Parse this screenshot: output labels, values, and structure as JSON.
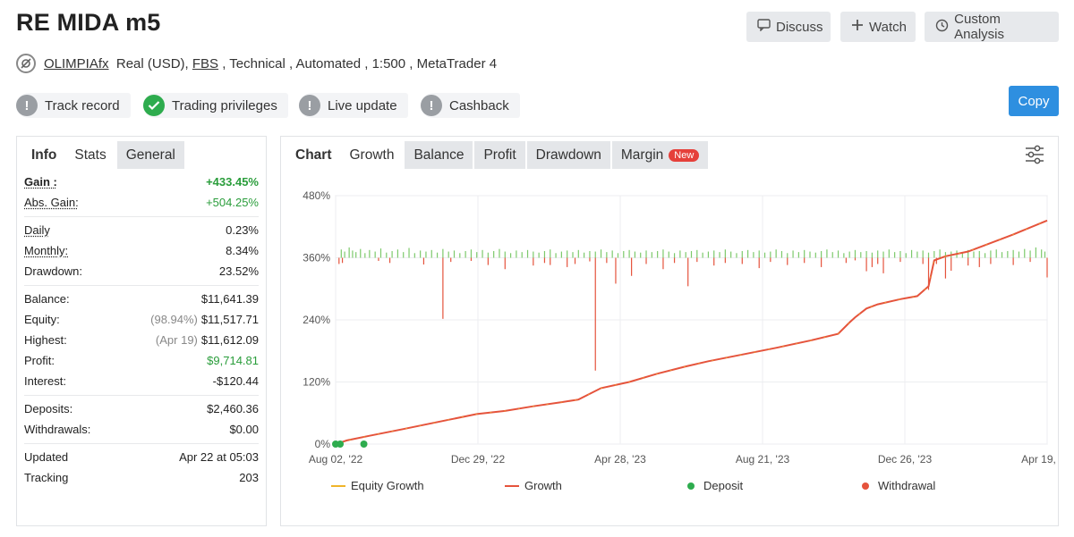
{
  "title": "RE MIDA m5",
  "actions": {
    "discuss": "Discuss",
    "watch": "Watch",
    "custom": "Custom Analysis",
    "copy": "Copy"
  },
  "meta": {
    "owner": "OLIMPIAfx",
    "account": "Real (USD), ",
    "broker": "FBS",
    "rest": " , Technical , Automated , 1:500 , MetaTrader 4"
  },
  "badges": {
    "track": "Track record",
    "trading": "Trading privileges",
    "live": "Live update",
    "cashback": "Cashback"
  },
  "left_tabs": {
    "info": "Info",
    "stats": "Stats",
    "general": "General"
  },
  "stats": {
    "gain_label": "Gain :",
    "gain": "+433.45%",
    "abs_gain_label": "Abs. Gain:",
    "abs_gain": "+504.25%",
    "daily_label": "Daily",
    "daily": "0.23%",
    "monthly_label": "Monthly:",
    "monthly": "8.34%",
    "drawdown_label": "Drawdown:",
    "drawdown": "23.52%",
    "balance_label": "Balance:",
    "balance": "$11,641.39",
    "equity_label": "Equity:",
    "equity_pct": "(98.94%)",
    "equity": "$11,517.71",
    "highest_label": "Highest:",
    "highest_date": "(Apr 19)",
    "highest": "$11,612.09",
    "profit_label": "Profit:",
    "profit": "$9,714.81",
    "interest_label": "Interest:",
    "interest": "-$120.44",
    "deposits_label": "Deposits:",
    "deposits": "$2,460.36",
    "withdrawals_label": "Withdrawals:",
    "withdrawals": "$0.00",
    "updated_label": "Updated",
    "updated": "Apr 22 at 05:03",
    "tracking_label": "Tracking",
    "tracking": "203"
  },
  "chart_tabs": {
    "chart": "Chart",
    "growth": "Growth",
    "balance": "Balance",
    "profit": "Profit",
    "drawdown": "Drawdown",
    "margin": "Margin",
    "new_badge": "New"
  },
  "colors": {
    "growth": "#e5533c",
    "equity": "#f0b429",
    "deposit": "#2eac4e",
    "withdrawal": "#e5533c",
    "bar_pos": "#7cc96b",
    "bar_neg": "#e5533c"
  },
  "chart_data": {
    "type": "line",
    "yticks": [
      "0%",
      "120%",
      "240%",
      "360%",
      "480%"
    ],
    "ylim": [
      0,
      480
    ],
    "xticks": [
      "Aug 02, '22",
      "Dec 29, '22",
      "Apr 28, '23",
      "Aug 21, '23",
      "Dec 26, '23",
      "Apr 19, '24"
    ],
    "xlim": [
      0,
      630
    ],
    "legend": [
      "Equity Growth",
      "Growth",
      "Deposit",
      "Withdrawal"
    ],
    "legend_position": "bottom",
    "series": [
      {
        "name": "Growth",
        "points": [
          [
            0,
            0
          ],
          [
            10,
            7
          ],
          [
            30,
            16
          ],
          [
            60,
            29
          ],
          [
            100,
            47
          ],
          [
            125,
            58
          ],
          [
            150,
            64
          ],
          [
            175,
            73
          ],
          [
            200,
            81
          ],
          [
            215,
            86
          ],
          [
            235,
            108
          ],
          [
            260,
            120
          ],
          [
            285,
            136
          ],
          [
            310,
            150
          ],
          [
            330,
            160
          ],
          [
            360,
            173
          ],
          [
            390,
            186
          ],
          [
            420,
            200
          ],
          [
            445,
            213
          ],
          [
            455,
            235
          ],
          [
            460,
            245
          ],
          [
            470,
            262
          ],
          [
            480,
            270
          ],
          [
            500,
            280
          ],
          [
            515,
            286
          ],
          [
            525,
            305
          ],
          [
            530,
            355
          ],
          [
            540,
            363
          ],
          [
            560,
            372
          ],
          [
            600,
            405
          ],
          [
            630,
            432
          ]
        ]
      }
    ],
    "deposits": [
      [
        0,
        0
      ],
      [
        4,
        0
      ],
      [
        25,
        0
      ]
    ],
    "bars": {
      "pos": [
        [
          5,
          16
        ],
        [
          8,
          12
        ],
        [
          12,
          20
        ],
        [
          15,
          14
        ],
        [
          18,
          11
        ],
        [
          22,
          17
        ],
        [
          26,
          9
        ],
        [
          30,
          15
        ],
        [
          35,
          12
        ],
        [
          40,
          18
        ],
        [
          45,
          10
        ],
        [
          50,
          13
        ],
        [
          55,
          16
        ],
        [
          60,
          11
        ],
        [
          65,
          19
        ],
        [
          70,
          9
        ],
        [
          75,
          14
        ],
        [
          80,
          12
        ],
        [
          85,
          15
        ],
        [
          90,
          10
        ],
        [
          95,
          17
        ],
        [
          100,
          12
        ],
        [
          105,
          14
        ],
        [
          110,
          9
        ],
        [
          115,
          13
        ],
        [
          120,
          16
        ],
        [
          125,
          11
        ],
        [
          130,
          15
        ],
        [
          135,
          10
        ],
        [
          140,
          13
        ],
        [
          145,
          17
        ],
        [
          150,
          12
        ],
        [
          155,
          9
        ],
        [
          160,
          14
        ],
        [
          165,
          11
        ],
        [
          170,
          15
        ],
        [
          175,
          12
        ],
        [
          180,
          10
        ],
        [
          185,
          13
        ],
        [
          190,
          16
        ],
        [
          195,
          9
        ],
        [
          200,
          12
        ],
        [
          205,
          14
        ],
        [
          210,
          11
        ],
        [
          215,
          15
        ],
        [
          220,
          10
        ],
        [
          225,
          13
        ],
        [
          230,
          12
        ],
        [
          235,
          16
        ],
        [
          240,
          11
        ],
        [
          245,
          14
        ],
        [
          250,
          9
        ],
        [
          255,
          13
        ],
        [
          260,
          15
        ],
        [
          265,
          12
        ],
        [
          270,
          10
        ],
        [
          275,
          14
        ],
        [
          280,
          11
        ],
        [
          285,
          13
        ],
        [
          290,
          16
        ],
        [
          295,
          12
        ],
        [
          300,
          9
        ],
        [
          305,
          14
        ],
        [
          310,
          11
        ],
        [
          315,
          13
        ],
        [
          320,
          15
        ],
        [
          325,
          10
        ],
        [
          330,
          12
        ],
        [
          335,
          14
        ],
        [
          340,
          11
        ],
        [
          345,
          16
        ],
        [
          350,
          12
        ],
        [
          355,
          9
        ],
        [
          360,
          13
        ],
        [
          365,
          15
        ],
        [
          370,
          11
        ],
        [
          375,
          14
        ],
        [
          380,
          10
        ],
        [
          385,
          12
        ],
        [
          390,
          16
        ],
        [
          395,
          13
        ],
        [
          400,
          9
        ],
        [
          405,
          14
        ],
        [
          410,
          11
        ],
        [
          415,
          15
        ],
        [
          420,
          12
        ],
        [
          425,
          10
        ],
        [
          430,
          13
        ],
        [
          435,
          16
        ],
        [
          440,
          11
        ],
        [
          445,
          14
        ],
        [
          450,
          9
        ],
        [
          455,
          12
        ],
        [
          460,
          15
        ],
        [
          465,
          11
        ],
        [
          470,
          13
        ],
        [
          475,
          10
        ],
        [
          480,
          14
        ],
        [
          485,
          12
        ],
        [
          490,
          16
        ],
        [
          495,
          11
        ],
        [
          500,
          13
        ],
        [
          505,
          9
        ],
        [
          510,
          15
        ],
        [
          515,
          12
        ],
        [
          520,
          14
        ],
        [
          525,
          10
        ],
        [
          530,
          13
        ],
        [
          535,
          16
        ],
        [
          540,
          11
        ],
        [
          545,
          12
        ],
        [
          550,
          14
        ],
        [
          555,
          10
        ],
        [
          560,
          15
        ],
        [
          565,
          12
        ],
        [
          570,
          13
        ],
        [
          575,
          9
        ],
        [
          580,
          14
        ],
        [
          585,
          16
        ],
        [
          590,
          11
        ],
        [
          595,
          13
        ],
        [
          600,
          15
        ],
        [
          605,
          12
        ],
        [
          610,
          17
        ],
        [
          615,
          14
        ],
        [
          620,
          20
        ],
        [
          625,
          16
        ],
        [
          628,
          12
        ]
      ],
      "neg": [
        [
          3,
          12
        ],
        [
          6,
          10
        ],
        [
          38,
          6
        ],
        [
          48,
          10
        ],
        [
          78,
          13
        ],
        [
          95,
          118
        ],
        [
          102,
          8
        ],
        [
          120,
          6
        ],
        [
          135,
          14
        ],
        [
          150,
          22
        ],
        [
          175,
          15
        ],
        [
          185,
          10
        ],
        [
          190,
          14
        ],
        [
          205,
          18
        ],
        [
          212,
          12
        ],
        [
          225,
          7
        ],
        [
          230,
          218
        ],
        [
          240,
          10
        ],
        [
          248,
          50
        ],
        [
          262,
          35
        ],
        [
          275,
          12
        ],
        [
          290,
          22
        ],
        [
          300,
          10
        ],
        [
          312,
          55
        ],
        [
          320,
          8
        ],
        [
          335,
          15
        ],
        [
          345,
          10
        ],
        [
          360,
          12
        ],
        [
          375,
          20
        ],
        [
          385,
          8
        ],
        [
          400,
          14
        ],
        [
          415,
          10
        ],
        [
          430,
          18
        ],
        [
          452,
          10
        ],
        [
          460,
          5
        ],
        [
          470,
          26
        ],
        [
          475,
          18
        ],
        [
          480,
          12
        ],
        [
          485,
          30
        ],
        [
          500,
          8
        ],
        [
          520,
          12
        ],
        [
          525,
          62
        ],
        [
          532,
          12
        ],
        [
          540,
          40
        ],
        [
          545,
          25
        ],
        [
          560,
          15
        ],
        [
          570,
          18
        ],
        [
          580,
          12
        ],
        [
          600,
          14
        ],
        [
          615,
          8
        ],
        [
          630,
          38
        ]
      ]
    }
  }
}
